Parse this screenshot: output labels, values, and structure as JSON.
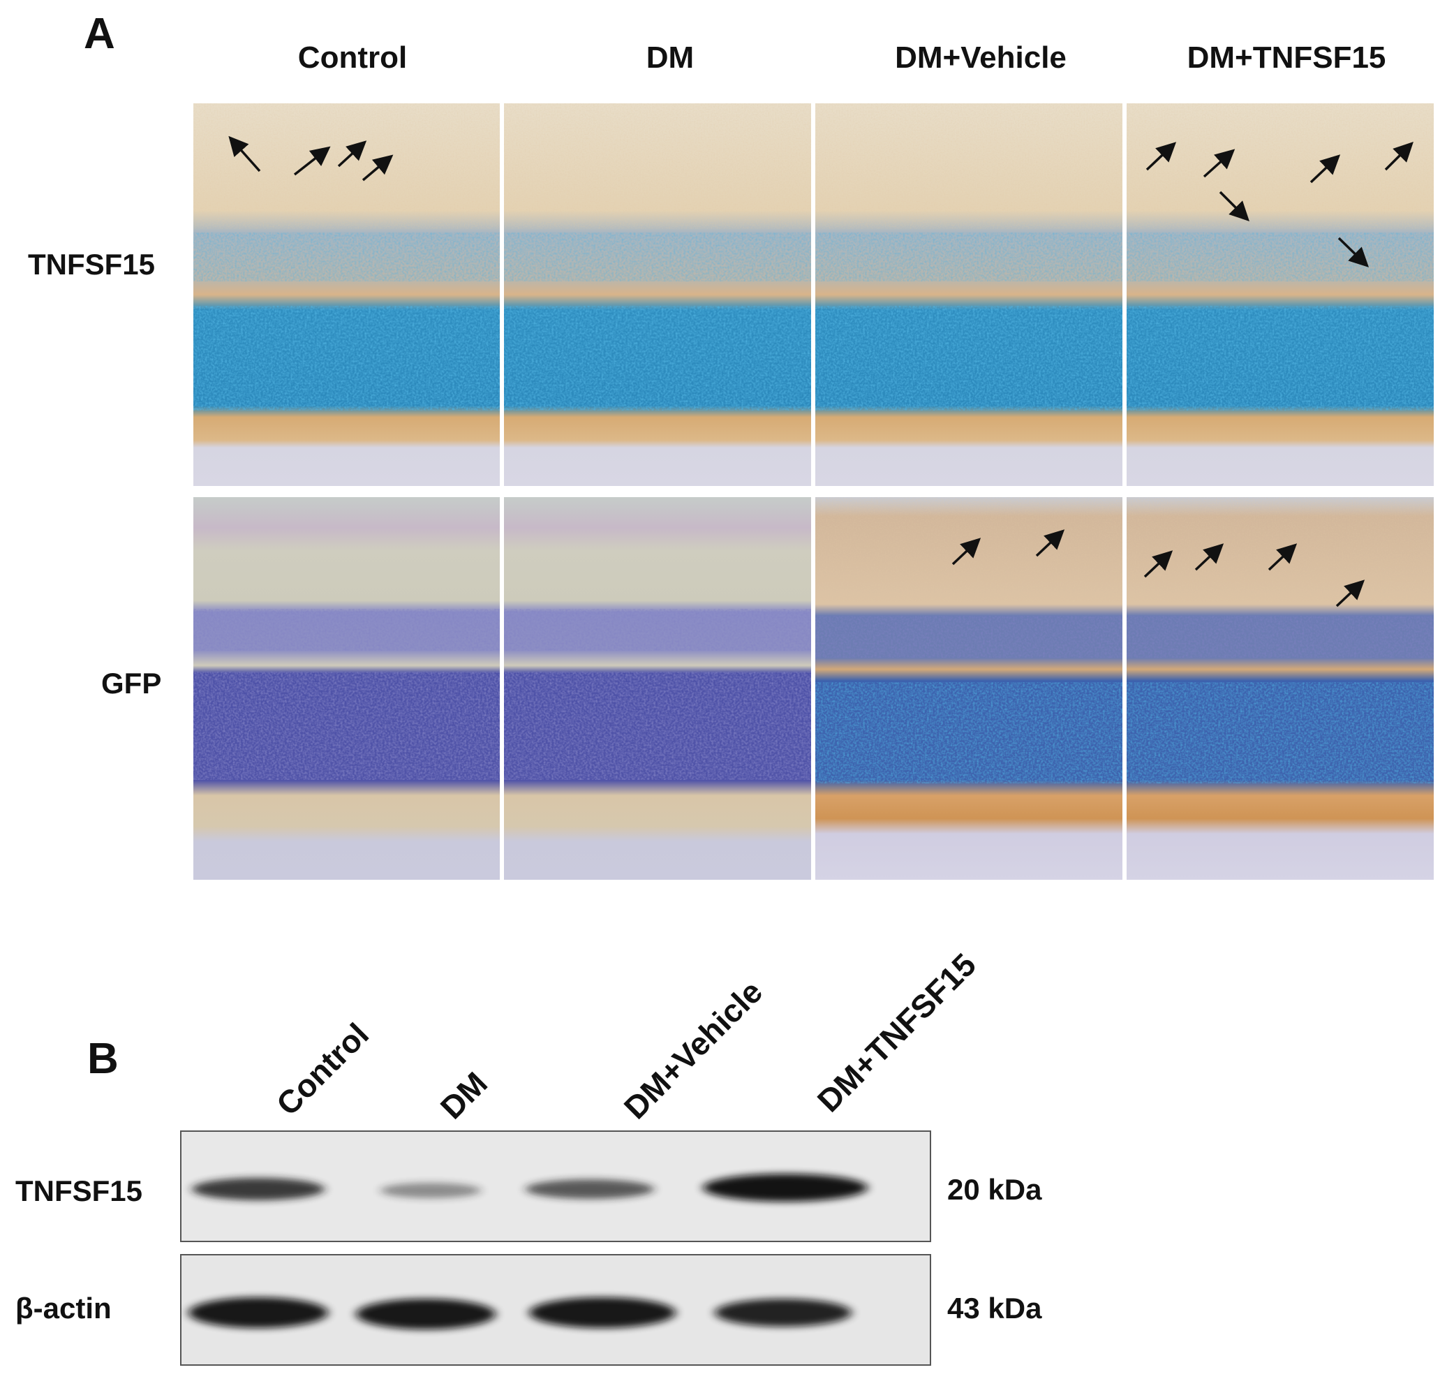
{
  "panel_a": {
    "letter": "A",
    "column_labels": [
      "Control",
      "DM",
      "DM+Vehicle",
      "DM+TNFSF15"
    ],
    "row_labels": [
      "TNFSF15",
      "GFP"
    ]
  },
  "panel_b": {
    "letter": "B",
    "lane_labels": [
      "Control",
      "DM",
      "DM+Vehicle",
      "DM+TNFSF15"
    ],
    "blots": [
      {
        "label": "TNFSF15",
        "size": "20 kDa"
      },
      {
        "label": "β-actin",
        "size": "43 kDa"
      }
    ]
  },
  "colors": {
    "dab_brown": "#c9a06a",
    "hematoxylin_blue_top": "#2a8fc0",
    "hematoxylin_violet_bottom": "#5a5cae",
    "blot_band": "#1c1c1c"
  }
}
